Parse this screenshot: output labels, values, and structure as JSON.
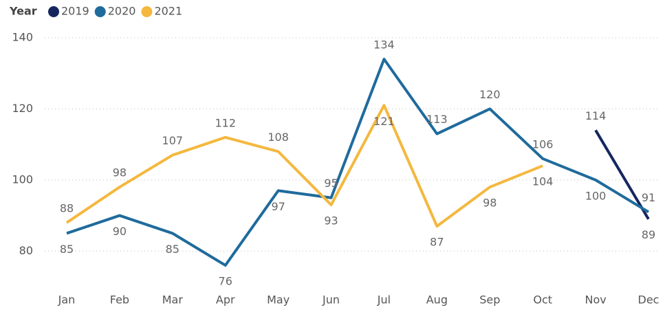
{
  "chart_data": {
    "type": "line",
    "legend_title": "Year",
    "categories": [
      "Jan",
      "Feb",
      "Mar",
      "Apr",
      "May",
      "Jun",
      "Jul",
      "Aug",
      "Sep",
      "Oct",
      "Nov",
      "Dec"
    ],
    "series": [
      {
        "name": "2019",
        "color": "#15265f",
        "values": [
          null,
          null,
          null,
          null,
          null,
          null,
          null,
          null,
          null,
          null,
          114,
          89
        ]
      },
      {
        "name": "2020",
        "color": "#1f6b9c",
        "values": [
          85,
          90,
          85,
          76,
          97,
          95,
          134,
          113,
          120,
          106,
          100,
          91
        ]
      },
      {
        "name": "2021",
        "color": "#f4b83f",
        "values": [
          88,
          98,
          107,
          112,
          108,
          93,
          121,
          87,
          98,
          104,
          null,
          null
        ]
      }
    ],
    "ylim": [
      70,
      140
    ],
    "yticks": [
      80,
      100,
      120,
      140
    ],
    "grid": true,
    "legend": "top-left"
  }
}
